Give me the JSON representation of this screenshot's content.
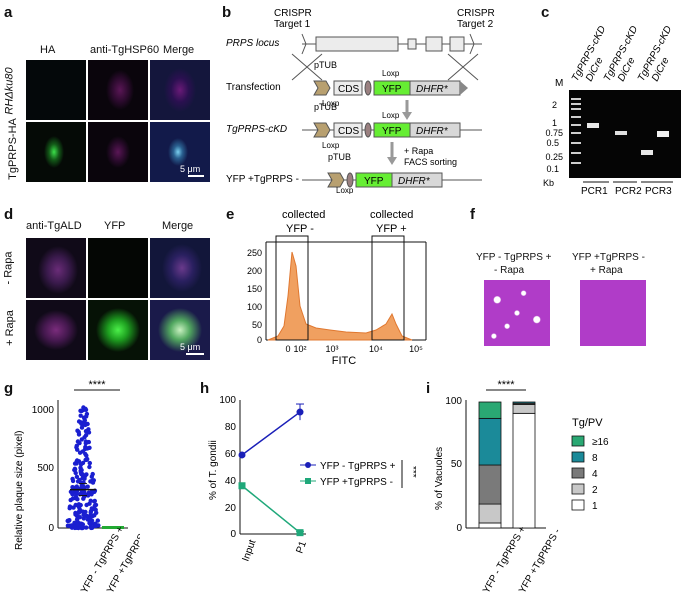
{
  "panel_letters": [
    "a",
    "b",
    "c",
    "d",
    "e",
    "f",
    "g",
    "h",
    "i"
  ],
  "panel_a": {
    "columns": [
      "HA",
      "anti-TgHSP60",
      "Merge"
    ],
    "rows": [
      "RHΔku80",
      "TgPRPS-HA"
    ],
    "scale": "5 μm"
  },
  "panel_b": {
    "crispr1": "CRISPR",
    "target1": "Target 1",
    "crispr2": "CRISPR",
    "target2": "Target 2",
    "rows": [
      "PRPS locus",
      "Transfection",
      "TgPRPS-cKD",
      "YFP +TgPRPS -"
    ],
    "ptub": "pTUB",
    "loxp": "Loxp",
    "cds": "CDS",
    "yfp": "YFP",
    "dhfr": "DHFR*",
    "rapa_note1": "+ Rapa",
    "rapa_note2": "FACS sorting"
  },
  "panel_c": {
    "lanes": [
      "TgPRPS-cKD",
      "DiCre",
      "TgPRPS-cKD",
      "DiCre",
      "TgPRPS-cKD",
      "DiCre"
    ],
    "marker": "M",
    "kb_ticks": [
      "2",
      "1",
      "0.75",
      "0.5",
      "0.25",
      "0.1"
    ],
    "kb_unit": "Kb",
    "groups": [
      "PCR1",
      "PCR2",
      "PCR3"
    ]
  },
  "panel_d": {
    "columns": [
      "anti-TgALD",
      "YFP",
      "Merge"
    ],
    "rows": [
      "- Rapa",
      "+ Rapa"
    ],
    "scale": "5 μm"
  },
  "panel_e": {
    "gate1": [
      "collected",
      "YFP -"
    ],
    "gate2": [
      "collected",
      "YFP +"
    ],
    "xlabel": "FITC",
    "yticks": [
      "250",
      "200",
      "150",
      "100",
      "50",
      "0"
    ],
    "xticks": [
      "0",
      "10²",
      "10³",
      "10⁴",
      "10⁵"
    ]
  },
  "panel_f": {
    "left_title": [
      "YFP - TgPRPS +",
      "- Rapa"
    ],
    "right_title": [
      "YFP +TgPRPS -",
      "+ Rapa"
    ]
  },
  "panel_g": {
    "ylabel": "Relative plaque size (pixel)",
    "yticks": [
      "1000",
      "500",
      "0"
    ],
    "groups": [
      "YFP - TgPRPS +",
      "YFP +TgPRPS -"
    ],
    "significance": "****"
  },
  "panel_h": {
    "ylabel": "% of T. gondii",
    "yticks": [
      "100",
      "80",
      "60",
      "40",
      "20",
      "0"
    ],
    "xticks": [
      "Input",
      "P1"
    ],
    "legend": [
      "YFP - TgPRPS +",
      "YFP +TgPRPS -"
    ],
    "significance": "***"
  },
  "panel_i": {
    "ylabel": "% of Vacuoles",
    "yticks": [
      "100",
      "50",
      "0"
    ],
    "legend_title": "Tg/PV",
    "legend": [
      "≥16",
      "8",
      "4",
      "2",
      "1"
    ],
    "groups": [
      "YFP - TgPRPS +",
      "YFP +TgPRPS -"
    ],
    "significance": "****"
  },
  "chart_data": [
    {
      "type": "scatter",
      "panel": "g",
      "categories": [
        "YFP - TgPRPS +",
        "YFP +TgPRPS -"
      ],
      "series": [
        {
          "name": "YFP - TgPRPS +",
          "mean": 320,
          "sem": 25,
          "range": [
            0,
            1050
          ]
        },
        {
          "name": "YFP +TgPRPS -",
          "mean": 0,
          "sem": 0,
          "range": [
            0,
            0
          ]
        }
      ],
      "ylim": [
        0,
        1100
      ],
      "ylabel": "Relative plaque size (pixel)"
    },
    {
      "type": "line",
      "panel": "h",
      "x": [
        "Input",
        "P1"
      ],
      "series": [
        {
          "name": "YFP - TgPRPS +",
          "values": [
            59,
            91
          ],
          "error": [
            0,
            6
          ],
          "color": "#1a1fb8"
        },
        {
          "name": "YFP +TgPRPS -",
          "values": [
            36,
            1
          ],
          "error": [
            0,
            1
          ],
          "color": "#1fa87a"
        }
      ],
      "ylim": [
        0,
        100
      ],
      "ylabel": "% of T. gondii"
    },
    {
      "type": "bar",
      "panel": "i",
      "stacked": true,
      "categories": [
        "YFP - TgPRPS +",
        "YFP +TgPRPS -"
      ],
      "series": [
        {
          "name": "1",
          "values": [
            4,
            91
          ],
          "color": "#ffffff"
        },
        {
          "name": "2",
          "values": [
            15,
            7
          ],
          "color": "#c8c8c8"
        },
        {
          "name": "4",
          "values": [
            31,
            1
          ],
          "color": "#7a7a7a"
        },
        {
          "name": "8",
          "values": [
            37,
            1
          ],
          "color": "#1b8a99"
        },
        {
          "name": "≥16",
          "values": [
            13,
            0
          ],
          "color": "#2aa873"
        }
      ],
      "ylim": [
        0,
        100
      ],
      "ylabel": "% of Vacuoles"
    }
  ]
}
